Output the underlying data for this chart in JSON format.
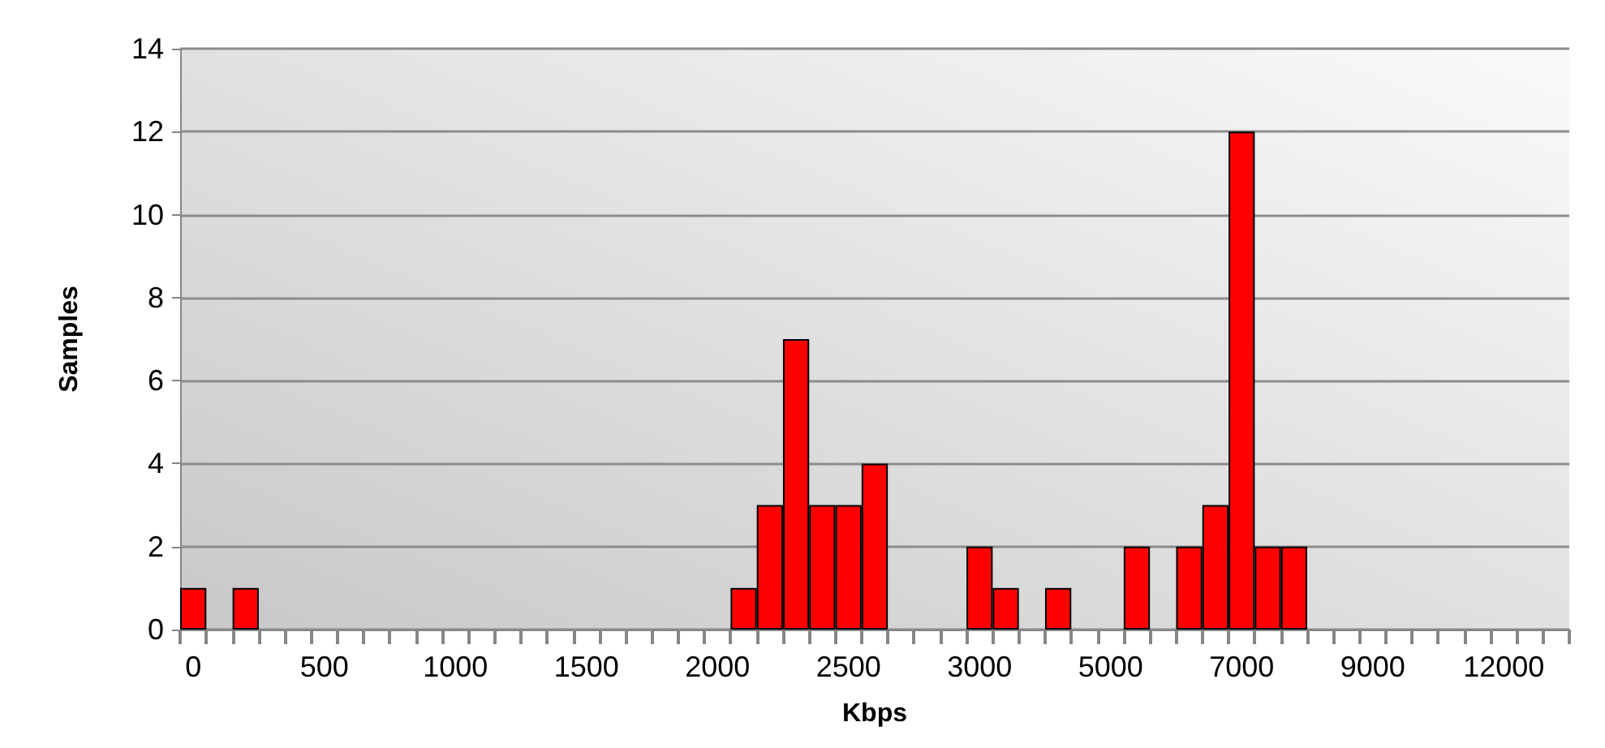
{
  "chart_data": {
    "type": "bar",
    "xlabel": "Kbps",
    "ylabel": "Samples",
    "categories": [
      "0",
      null,
      null,
      null,
      null,
      "500",
      null,
      null,
      null,
      null,
      "1000",
      null,
      null,
      null,
      null,
      "1500",
      null,
      null,
      null,
      null,
      "2000",
      null,
      null,
      null,
      null,
      "2500",
      null,
      null,
      null,
      null,
      "3000",
      null,
      null,
      null,
      null,
      "5000",
      null,
      null,
      null,
      null,
      "7000",
      null,
      null,
      null,
      null,
      "9000",
      null,
      null,
      null,
      null,
      "12000",
      null,
      null
    ],
    "values": [
      1,
      0,
      1,
      0,
      0,
      0,
      0,
      0,
      0,
      0,
      0,
      0,
      0,
      0,
      0,
      0,
      0,
      0,
      0,
      0,
      0,
      1,
      3,
      7,
      3,
      3,
      4,
      0,
      0,
      0,
      2,
      1,
      0,
      1,
      0,
      0,
      2,
      0,
      2,
      3,
      12,
      2,
      2,
      0,
      0,
      0,
      0,
      0,
      0,
      0,
      0,
      0,
      0
    ],
    "color": "#ff0000",
    "ylim": [
      0,
      14
    ],
    "yticks": [
      0,
      2,
      4,
      6,
      8,
      10,
      12,
      14
    ],
    "grid": "y"
  }
}
